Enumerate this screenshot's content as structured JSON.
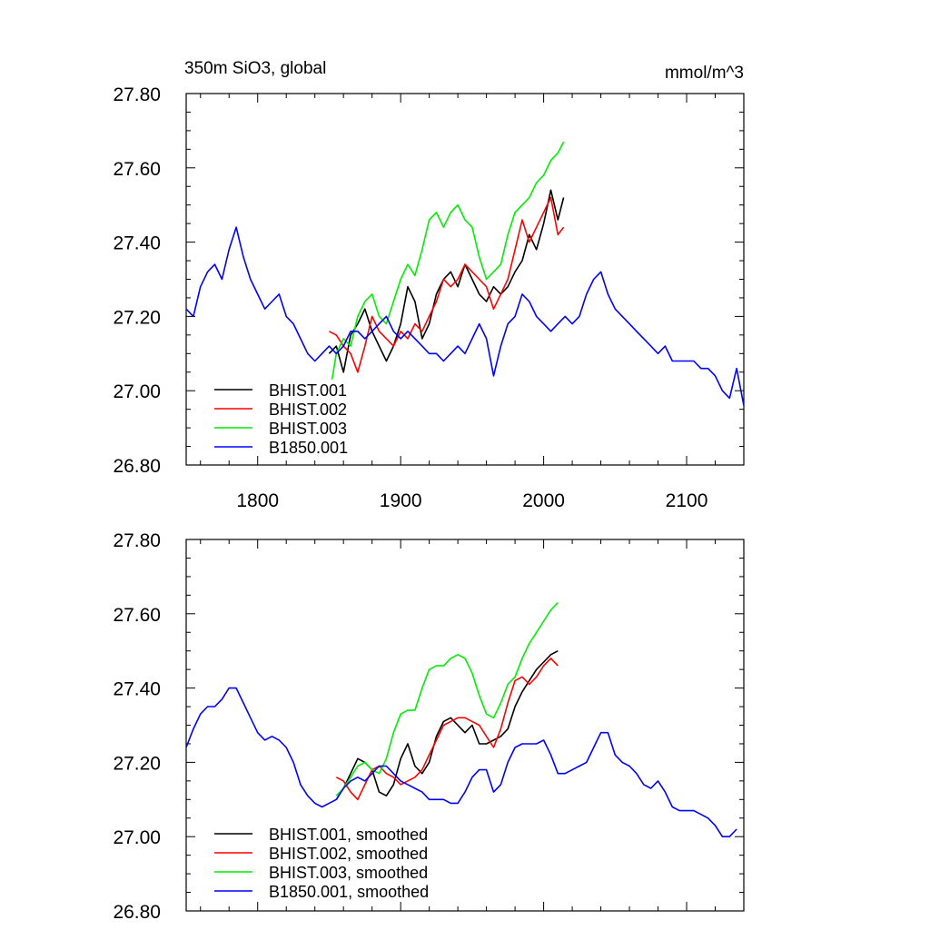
{
  "chart_data": [
    {
      "type": "line",
      "title": "350m SiO3, global",
      "units": "mmol/m^3",
      "xlim": [
        1750,
        2140
      ],
      "ylim": [
        26.8,
        27.8
      ],
      "yticks": [
        "26.80",
        "27.00",
        "27.20",
        "27.40",
        "27.60",
        "27.80"
      ],
      "xticks": [
        "1800",
        "1900",
        "2000",
        "2100"
      ],
      "legend_position": "bottom-left",
      "series": [
        {
          "name": "BHIST.001",
          "color": "#000000",
          "x": [
            1850,
            1855,
            1860,
            1865,
            1870,
            1875,
            1880,
            1885,
            1890,
            1895,
            1900,
            1905,
            1910,
            1915,
            1920,
            1925,
            1930,
            1935,
            1940,
            1945,
            1950,
            1955,
            1960,
            1965,
            1970,
            1975,
            1980,
            1985,
            1990,
            1995,
            2000,
            2005,
            2010,
            2014
          ],
          "y": [
            27.1,
            27.12,
            27.05,
            27.15,
            27.18,
            27.22,
            27.16,
            27.12,
            27.08,
            27.12,
            27.18,
            27.28,
            27.24,
            27.14,
            27.18,
            27.26,
            27.3,
            27.32,
            27.28,
            27.34,
            27.3,
            27.26,
            27.24,
            27.28,
            27.26,
            27.28,
            27.32,
            27.35,
            27.42,
            27.38,
            27.45,
            27.54,
            27.46,
            27.52
          ]
        },
        {
          "name": "BHIST.002",
          "color": "#ff0000",
          "x": [
            1850,
            1855,
            1860,
            1865,
            1870,
            1875,
            1880,
            1885,
            1890,
            1895,
            1900,
            1905,
            1910,
            1915,
            1920,
            1925,
            1930,
            1935,
            1940,
            1945,
            1950,
            1955,
            1960,
            1965,
            1970,
            1975,
            1980,
            1985,
            1990,
            1995,
            2000,
            2005,
            2010,
            2014
          ],
          "y": [
            27.16,
            27.15,
            27.12,
            27.1,
            27.05,
            27.12,
            27.2,
            27.16,
            27.14,
            27.12,
            27.16,
            27.14,
            27.18,
            27.16,
            27.2,
            27.24,
            27.3,
            27.28,
            27.3,
            27.34,
            27.32,
            27.3,
            27.28,
            27.22,
            27.26,
            27.3,
            27.38,
            27.46,
            27.4,
            27.44,
            27.48,
            27.52,
            27.42,
            27.44
          ]
        },
        {
          "name": "BHIST.003",
          "color": "#00ee00",
          "x": [
            1852,
            1855,
            1860,
            1865,
            1870,
            1875,
            1880,
            1885,
            1890,
            1895,
            1900,
            1905,
            1910,
            1915,
            1920,
            1925,
            1930,
            1935,
            1940,
            1945,
            1950,
            1955,
            1960,
            1965,
            1970,
            1975,
            1980,
            1985,
            1990,
            1995,
            2000,
            2005,
            2010,
            2014
          ],
          "y": [
            27.03,
            27.1,
            27.14,
            27.12,
            27.2,
            27.24,
            27.26,
            27.2,
            27.18,
            27.24,
            27.3,
            27.34,
            27.31,
            27.38,
            27.46,
            27.48,
            27.44,
            27.48,
            27.5,
            27.46,
            27.44,
            27.36,
            27.3,
            27.32,
            27.34,
            27.42,
            27.48,
            27.5,
            27.52,
            27.56,
            27.58,
            27.62,
            27.64,
            27.67
          ]
        },
        {
          "name": "B1850.001",
          "color": "#0000ff",
          "x": [
            1750,
            1755,
            1760,
            1765,
            1770,
            1775,
            1780,
            1785,
            1790,
            1795,
            1800,
            1805,
            1810,
            1815,
            1820,
            1825,
            1830,
            1835,
            1840,
            1845,
            1850,
            1855,
            1860,
            1865,
            1870,
            1875,
            1880,
            1885,
            1890,
            1895,
            1900,
            1905,
            1910,
            1915,
            1920,
            1925,
            1930,
            1935,
            1940,
            1945,
            1950,
            1955,
            1960,
            1965,
            1970,
            1975,
            1980,
            1985,
            1990,
            1995,
            2000,
            2005,
            2010,
            2015,
            2020,
            2025,
            2030,
            2035,
            2040,
            2045,
            2050,
            2055,
            2060,
            2065,
            2070,
            2075,
            2080,
            2085,
            2090,
            2095,
            2100,
            2105,
            2110,
            2115,
            2120,
            2125,
            2130,
            2135,
            2140
          ],
          "y": [
            27.22,
            27.2,
            27.28,
            27.32,
            27.34,
            27.3,
            27.38,
            27.44,
            27.36,
            27.3,
            27.26,
            27.22,
            27.24,
            27.26,
            27.2,
            27.18,
            27.14,
            27.1,
            27.08,
            27.1,
            27.12,
            27.1,
            27.12,
            27.16,
            27.16,
            27.14,
            27.16,
            27.18,
            27.2,
            27.16,
            27.14,
            27.16,
            27.14,
            27.12,
            27.1,
            27.1,
            27.08,
            27.1,
            27.12,
            27.1,
            27.14,
            27.18,
            27.14,
            27.04,
            27.12,
            27.18,
            27.2,
            27.26,
            27.24,
            27.2,
            27.18,
            27.16,
            27.18,
            27.2,
            27.18,
            27.2,
            27.26,
            27.3,
            27.32,
            27.26,
            27.22,
            27.2,
            27.18,
            27.16,
            27.14,
            27.12,
            27.1,
            27.12,
            27.08,
            27.08,
            27.08,
            27.08,
            27.06,
            27.06,
            27.04,
            27.0,
            26.98,
            27.06,
            26.96
          ]
        }
      ]
    },
    {
      "type": "line",
      "title": "",
      "xlim": [
        1750,
        2140
      ],
      "ylim": [
        26.8,
        27.8
      ],
      "yticks": [
        "26.80",
        "27.00",
        "27.20",
        "27.40",
        "27.60",
        "27.80"
      ],
      "legend_position": "bottom-left",
      "series": [
        {
          "name": "BHIST.001, smoothed",
          "color": "#000000",
          "x": [
            1855,
            1860,
            1865,
            1870,
            1875,
            1880,
            1885,
            1890,
            1895,
            1900,
            1905,
            1910,
            1915,
            1920,
            1925,
            1930,
            1935,
            1940,
            1945,
            1950,
            1955,
            1960,
            1965,
            1970,
            1975,
            1980,
            1985,
            1990,
            1995,
            2000,
            2005,
            2010
          ],
          "y": [
            27.1,
            27.13,
            27.17,
            27.21,
            27.2,
            27.18,
            27.12,
            27.11,
            27.14,
            27.21,
            27.25,
            27.19,
            27.17,
            27.2,
            27.27,
            27.31,
            27.32,
            27.3,
            27.28,
            27.3,
            27.25,
            27.25,
            27.26,
            27.27,
            27.29,
            27.35,
            27.39,
            27.42,
            27.45,
            27.47,
            27.49,
            27.5
          ]
        },
        {
          "name": "BHIST.002, smoothed",
          "color": "#ff0000",
          "x": [
            1855,
            1860,
            1865,
            1870,
            1875,
            1880,
            1885,
            1890,
            1895,
            1900,
            1905,
            1910,
            1915,
            1920,
            1925,
            1930,
            1935,
            1940,
            1945,
            1950,
            1955,
            1960,
            1965,
            1970,
            1975,
            1980,
            1985,
            1990,
            1995,
            2000,
            2005,
            2010
          ],
          "y": [
            27.16,
            27.15,
            27.12,
            27.1,
            27.14,
            27.18,
            27.19,
            27.17,
            27.16,
            27.14,
            27.15,
            27.16,
            27.18,
            27.22,
            27.26,
            27.3,
            27.31,
            27.32,
            27.32,
            27.31,
            27.3,
            27.27,
            27.24,
            27.29,
            27.36,
            27.42,
            27.43,
            27.41,
            27.43,
            27.46,
            27.48,
            27.46
          ]
        },
        {
          "name": "BHIST.003, smoothed",
          "color": "#00ee00",
          "x": [
            1855,
            1860,
            1865,
            1870,
            1875,
            1880,
            1885,
            1890,
            1895,
            1900,
            1905,
            1910,
            1915,
            1920,
            1925,
            1930,
            1935,
            1940,
            1945,
            1950,
            1955,
            1960,
            1965,
            1970,
            1975,
            1980,
            1985,
            1990,
            1995,
            2000,
            2005,
            2010
          ],
          "y": [
            27.11,
            27.13,
            27.16,
            27.19,
            27.2,
            27.18,
            27.17,
            27.21,
            27.28,
            27.33,
            27.34,
            27.34,
            27.4,
            27.45,
            27.46,
            27.46,
            27.48,
            27.49,
            27.48,
            27.44,
            27.38,
            27.33,
            27.32,
            27.36,
            27.41,
            27.43,
            27.48,
            27.52,
            27.55,
            27.58,
            27.61,
            27.63
          ]
        },
        {
          "name": "B1850.001, smoothed",
          "color": "#0000ff",
          "x": [
            1750,
            1755,
            1760,
            1765,
            1770,
            1775,
            1780,
            1785,
            1790,
            1795,
            1800,
            1805,
            1810,
            1815,
            1820,
            1825,
            1830,
            1835,
            1840,
            1845,
            1850,
            1855,
            1860,
            1865,
            1870,
            1875,
            1880,
            1885,
            1890,
            1895,
            1900,
            1905,
            1910,
            1915,
            1920,
            1925,
            1930,
            1935,
            1940,
            1945,
            1950,
            1955,
            1960,
            1965,
            1970,
            1975,
            1980,
            1985,
            1990,
            1995,
            2000,
            2005,
            2010,
            2015,
            2020,
            2025,
            2030,
            2035,
            2040,
            2045,
            2050,
            2055,
            2060,
            2065,
            2070,
            2075,
            2080,
            2085,
            2090,
            2095,
            2100,
            2105,
            2110,
            2115,
            2120,
            2125,
            2130,
            2135
          ],
          "y": [
            27.24,
            27.29,
            27.33,
            27.35,
            27.35,
            27.37,
            27.4,
            27.4,
            27.36,
            27.32,
            27.28,
            27.26,
            27.27,
            27.26,
            27.24,
            27.2,
            27.14,
            27.11,
            27.09,
            27.08,
            27.09,
            27.1,
            27.13,
            27.15,
            27.16,
            27.15,
            27.17,
            27.19,
            27.19,
            27.17,
            27.15,
            27.14,
            27.13,
            27.12,
            27.1,
            27.1,
            27.1,
            27.09,
            27.09,
            27.12,
            27.16,
            27.18,
            27.18,
            27.12,
            27.14,
            27.2,
            27.24,
            27.25,
            27.25,
            27.25,
            27.26,
            27.22,
            27.17,
            27.17,
            27.18,
            27.19,
            27.2,
            27.24,
            27.28,
            27.28,
            27.22,
            27.2,
            27.19,
            27.17,
            27.14,
            27.13,
            27.15,
            27.12,
            27.08,
            27.07,
            27.07,
            27.07,
            27.06,
            27.05,
            27.03,
            27.0,
            27.0,
            27.02
          ]
        }
      ]
    }
  ]
}
